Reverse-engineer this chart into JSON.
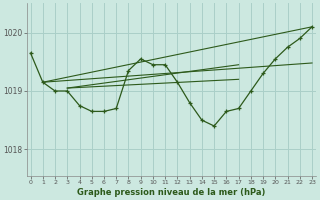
{
  "x": [
    0,
    1,
    2,
    3,
    4,
    5,
    6,
    7,
    8,
    9,
    10,
    11,
    12,
    13,
    14,
    15,
    16,
    17,
    18,
    19,
    20,
    21,
    22,
    23
  ],
  "y": [
    1019.65,
    1019.15,
    1019.0,
    1019.0,
    1018.75,
    1018.65,
    1018.65,
    1018.7,
    1019.35,
    1019.55,
    1019.45,
    1019.45,
    1019.15,
    1018.8,
    1018.5,
    1018.4,
    1018.65,
    1018.7,
    1019.0,
    1019.3,
    1019.55,
    1019.75,
    1019.9,
    1020.1
  ],
  "trend_lines": [
    {
      "x0": 1,
      "y0": 1019.15,
      "x1": 23,
      "y1": 1020.1
    },
    {
      "x0": 1,
      "y0": 1019.15,
      "x1": 23,
      "y1": 1019.48
    },
    {
      "x0": 3,
      "y0": 1019.05,
      "x1": 17,
      "y1": 1019.45
    },
    {
      "x0": 3,
      "y0": 1019.05,
      "x1": 17,
      "y1": 1019.2
    }
  ],
  "line_color": "#2d5a1b",
  "bg_color": "#cce8e0",
  "grid_color": "#aacfc8",
  "ylabel_ticks": [
    1018,
    1019,
    1020
  ],
  "xlabel_ticks": [
    0,
    1,
    2,
    3,
    4,
    5,
    6,
    7,
    8,
    9,
    10,
    11,
    12,
    13,
    14,
    15,
    16,
    17,
    18,
    19,
    20,
    21,
    22,
    23
  ],
  "xlabel": "Graphe pression niveau de la mer (hPa)",
  "ylim": [
    1017.55,
    1020.5
  ],
  "xlim": [
    -0.3,
    23.3
  ]
}
